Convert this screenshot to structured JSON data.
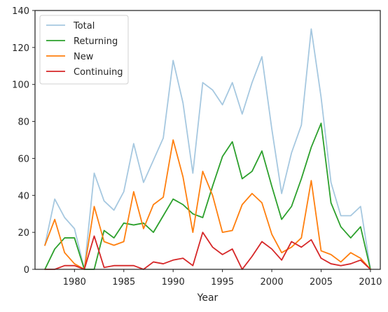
{
  "chart_data": {
    "type": "line",
    "title": "",
    "xlabel": "Year",
    "ylabel": "",
    "xlim": [
      1976,
      2011
    ],
    "ylim": [
      0,
      140
    ],
    "xticks": [
      1980,
      1985,
      1990,
      1995,
      2000,
      2005,
      2010
    ],
    "yticks": [
      0,
      20,
      40,
      60,
      80,
      100,
      120,
      140
    ],
    "grid": false,
    "legend_position": "top-left",
    "x": [
      1977,
      1978,
      1979,
      1980,
      1981,
      1982,
      1983,
      1984,
      1985,
      1986,
      1987,
      1988,
      1989,
      1990,
      1991,
      1992,
      1993,
      1994,
      1995,
      1996,
      1997,
      1998,
      1999,
      2000,
      2001,
      2002,
      2003,
      2004,
      2005,
      2006,
      2007,
      2008,
      2009,
      2010
    ],
    "series": [
      {
        "name": "Total",
        "color": "#a6c8e0",
        "values": [
          13,
          38,
          28,
          22,
          0,
          52,
          37,
          32,
          42,
          68,
          47,
          59,
          71,
          113,
          90,
          52,
          101,
          97,
          89,
          101,
          84,
          101,
          115,
          76,
          41,
          63,
          78,
          130,
          93,
          47,
          29,
          29,
          34,
          0
        ]
      },
      {
        "name": "Returning",
        "color": "#2ca02c",
        "values": [
          0,
          11,
          17,
          17,
          0,
          0,
          21,
          17,
          25,
          24,
          25,
          20,
          29,
          38,
          35,
          30,
          28,
          45,
          61,
          69,
          49,
          53,
          64,
          45,
          27,
          34,
          49,
          66,
          79,
          36,
          23,
          17,
          23,
          0
        ]
      },
      {
        "name": "New",
        "color": "#ff7f0e",
        "values": [
          13,
          27,
          9,
          3,
          0,
          34,
          15,
          13,
          15,
          42,
          22,
          35,
          39,
          70,
          50,
          20,
          53,
          40,
          20,
          21,
          35,
          41,
          36,
          19,
          9,
          12,
          17,
          48,
          10,
          8,
          4,
          9,
          6,
          0
        ]
      },
      {
        "name": "Continuing",
        "color": "#d62728",
        "values": [
          0,
          0,
          2,
          2,
          0,
          18,
          1,
          2,
          2,
          2,
          0,
          4,
          3,
          5,
          6,
          2,
          20,
          12,
          8,
          11,
          0,
          7,
          15,
          11,
          5,
          15,
          12,
          16,
          6,
          3,
          2,
          3,
          5,
          0
        ]
      }
    ]
  }
}
